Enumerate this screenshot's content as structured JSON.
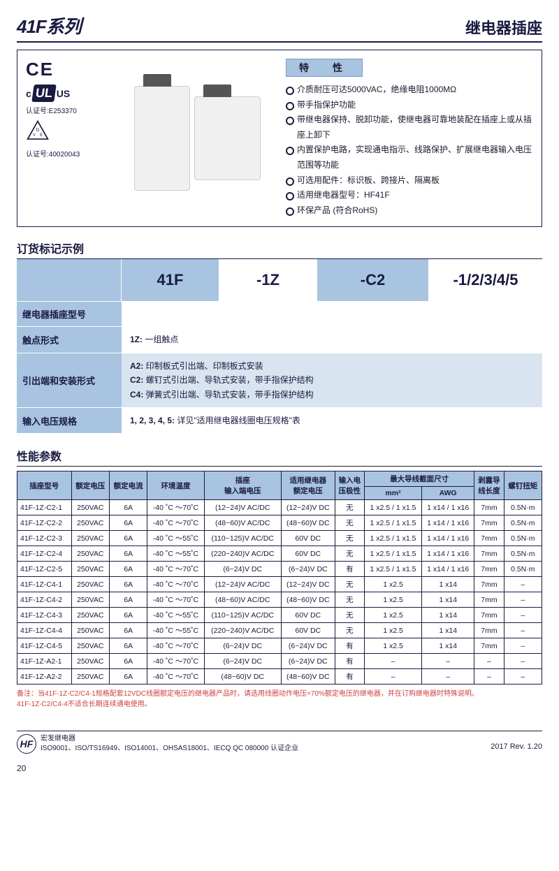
{
  "header": {
    "series": "41F",
    "series_suffix": "系列",
    "title_right": "继电器插座"
  },
  "certs": {
    "ce": "CE",
    "ulus_c": "c",
    "ulus_ul": "UL",
    "ulus_us": "US",
    "ul_num_label": "认证号:",
    "ul_num": "E253370",
    "vde_num_label": "认证号:",
    "vde_num": "40020043"
  },
  "features": {
    "title": "特　性",
    "items": [
      "介质耐压可达5000VAC，绝缘电阻1000MΩ",
      "带手指保护功能",
      "带继电器保持、脱卸功能，使继电器可靠地装配在插座上或从插座上卸下",
      "内置保护电路，实现通电指示、线路保护、扩展继电器输入电压范围等功能",
      "可选用配件：标识板、跨接片、隔离板",
      "适用继电器型号：HF41F",
      "环保产品 (符合RoHS)"
    ]
  },
  "ordering": {
    "section_title": "订货标记示例",
    "code": {
      "p1": "41F",
      "p2": "-1Z",
      "p3": "-C2",
      "p4": "-1/2/3/4/5"
    },
    "rows": [
      {
        "label": "继电器插座型号",
        "desc": ""
      },
      {
        "label": "触点形式",
        "desc": "<b>1Z:</b> 一组触点"
      },
      {
        "label": "引出端和安装形式",
        "desc": "<b>A2:</b> 印制板式引出端、印制板式安装<br><b>C2:</b> 螺钉式引出端、导轨式安装，带手指保护结构<br><b>C4:</b> 弹簧式引出端、导轨式安装，带手指保护结构"
      },
      {
        "label": "输入电压规格",
        "desc": "<b>1, 2, 3, 4, 5:</b> 详见\"适用继电器线圈电压规格\"表"
      }
    ]
  },
  "spec": {
    "section_title": "性能参数",
    "headers_row1": [
      "插座型号",
      "额定电压",
      "额定电流",
      "环境温度",
      "插座输入端电压",
      "适用继电器额定电压",
      "输入电压极性",
      "最大导线截面尺寸",
      "",
      "剥露导线长度",
      "螺钉扭矩"
    ],
    "headers_row2": [
      "",
      "",
      "",
      "",
      "",
      "",
      "",
      "mm²",
      "AWG",
      "",
      ""
    ],
    "header_top": {
      "model": "插座型号",
      "volt": "额定电压",
      "curr": "额定电流",
      "temp": "环境温度",
      "socket_v": "插座<br>输入端电压",
      "relay_v": "适用继电器<br>额定电压",
      "polarity": "输入电<br>压极性",
      "wire": "最大导线截面尺寸",
      "mm2": "mm²",
      "awg": "AWG",
      "strip": "剥露导<br>线长度",
      "torque": "螺钉扭矩"
    },
    "rows": [
      [
        "41F-1Z-C2-1",
        "250VAC",
        "6A",
        "-40 ˚C ～70˚C",
        "(12~24)V AC/DC",
        "(12~24)V DC",
        "无",
        "1 x2.5 / 1 x1.5",
        "1 x14 / 1 x16",
        "7mm",
        "0.5N·m"
      ],
      [
        "41F-1Z-C2-2",
        "250VAC",
        "6A",
        "-40 ˚C ～70˚C",
        "(48~60)V AC/DC",
        "(48~60)V DC",
        "无",
        "1 x2.5 / 1 x1.5",
        "1 x14 / 1 x16",
        "7mm",
        "0.5N·m"
      ],
      [
        "41F-1Z-C2-3",
        "250VAC",
        "6A",
        "-40 ˚C ～55˚C",
        "(110~125)V AC/DC",
        "60V DC",
        "无",
        "1 x2.5 / 1 x1.5",
        "1 x14 / 1 x16",
        "7mm",
        "0.5N·m"
      ],
      [
        "41F-1Z-C2-4",
        "250VAC",
        "6A",
        "-40 ˚C ～55˚C",
        "(220~240)V AC/DC",
        "60V DC",
        "无",
        "1 x2.5 / 1 x1.5",
        "1 x14 / 1 x16",
        "7mm",
        "0.5N·m"
      ],
      [
        "41F-1Z-C2-5",
        "250VAC",
        "6A",
        "-40 ˚C ～70˚C",
        "(6~24)V DC",
        "(6~24)V DC",
        "有",
        "1 x2.5 / 1 x1.5",
        "1 x14 / 1 x16",
        "7mm",
        "0.5N·m"
      ],
      [
        "41F-1Z-C4-1",
        "250VAC",
        "6A",
        "-40 ˚C ～70˚C",
        "(12~24)V AC/DC",
        "(12~24)V DC",
        "无",
        "1 x2.5",
        "1 x14",
        "7mm",
        "–"
      ],
      [
        "41F-1Z-C4-2",
        "250VAC",
        "6A",
        "-40 ˚C ～70˚C",
        "(48~60)V AC/DC",
        "(48~60)V DC",
        "无",
        "1 x2.5",
        "1 x14",
        "7mm",
        "–"
      ],
      [
        "41F-1Z-C4-3",
        "250VAC",
        "6A",
        "-40 ˚C ～55˚C",
        "(110~125)V AC/DC",
        "60V DC",
        "无",
        "1 x2.5",
        "1 x14",
        "7mm",
        "–"
      ],
      [
        "41F-1Z-C4-4",
        "250VAC",
        "6A",
        "-40 ˚C ～55˚C",
        "(220~240)V AC/DC",
        "60V DC",
        "无",
        "1 x2.5",
        "1 x14",
        "7mm",
        "–"
      ],
      [
        "41F-1Z-C4-5",
        "250VAC",
        "6A",
        "-40 ˚C ～70˚C",
        "(6~24)V DC",
        "(6~24)V DC",
        "有",
        "1 x2.5",
        "1 x14",
        "7mm",
        "–"
      ],
      [
        "41F-1Z-A2-1",
        "250VAC",
        "6A",
        "-40 ˚C ～70˚C",
        "(6~24)V DC",
        "(6~24)V DC",
        "有",
        "–",
        "–",
        "–",
        "–"
      ],
      [
        "41F-1Z-A2-2",
        "250VAC",
        "6A",
        "-40 ˚C ～70˚C",
        "(48~60)V DC",
        "(48~60)V DC",
        "有",
        "–",
        "–",
        "–",
        "–"
      ]
    ],
    "footnote_label": "备注：",
    "footnote": "当41F-1Z-C2/C4-1规格配套12VDC线圈额定电压的继电器产品时，请选用线圈动作电压=70%额定电压的继电器，并在订购继电器时特殊说明。<br>41F-1Z-C2/C4-4不适合长期连续通电使用。"
  },
  "footer": {
    "brand": "宏发继电器",
    "certs_line": "ISO9001、ISO/TS16949、ISO14001、OHSAS18001、IECQ QC 080000 认证企业",
    "rev": "2017   Rev. 1.20",
    "logo": "HF",
    "page": "20"
  }
}
